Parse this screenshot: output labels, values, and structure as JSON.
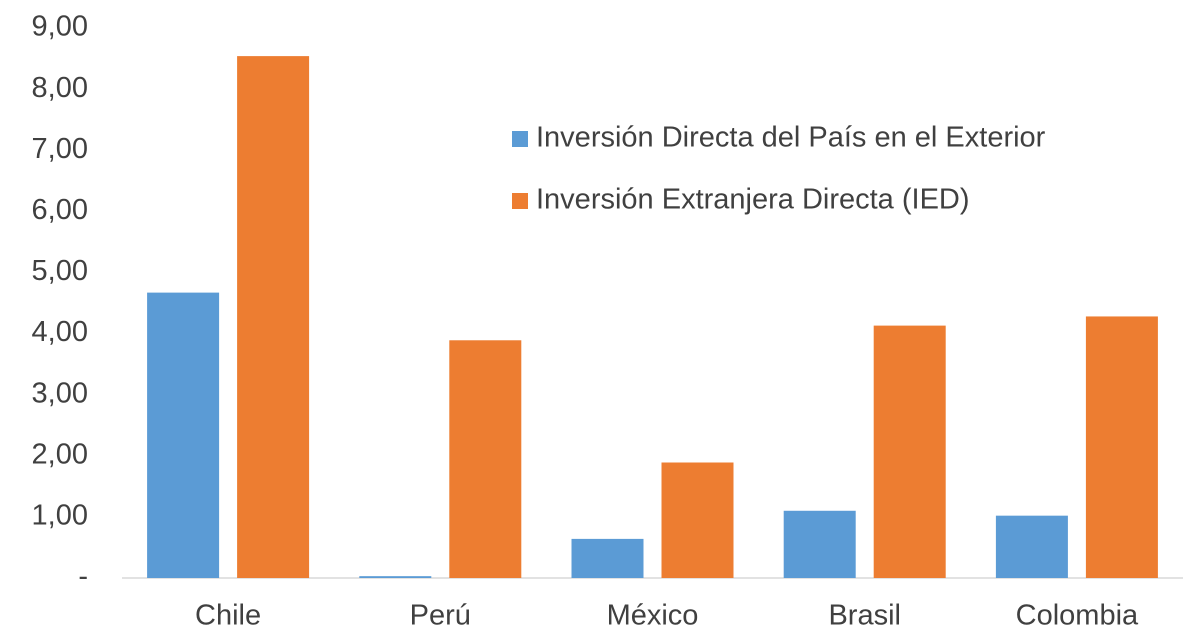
{
  "chart_data": {
    "type": "bar",
    "categories": [
      "Chile",
      "Perú",
      "México",
      "Brasil",
      "Colombia"
    ],
    "series": [
      {
        "name": "Inversión Directa del País en el Exterior",
        "color": "#5b9bd5",
        "values": [
          4.67,
          0.03,
          0.64,
          1.1,
          1.02
        ]
      },
      {
        "name": "Inversión Extranjera Directa (IED)",
        "color": "#ed7d31",
        "values": [
          8.54,
          3.89,
          1.89,
          4.13,
          4.28
        ]
      }
    ],
    "ylim": [
      0,
      9
    ],
    "yticks": [
      {
        "value": 0,
        "label": "-"
      },
      {
        "value": 1,
        "label": "1,00"
      },
      {
        "value": 2,
        "label": "2,00"
      },
      {
        "value": 3,
        "label": "3,00"
      },
      {
        "value": 4,
        "label": "4,00"
      },
      {
        "value": 5,
        "label": "5,00"
      },
      {
        "value": 6,
        "label": "6,00"
      },
      {
        "value": 7,
        "label": "7,00"
      },
      {
        "value": 8,
        "label": "8,00"
      },
      {
        "value": 9,
        "label": "9,00"
      }
    ],
    "grid": false,
    "legend": "upper-right"
  }
}
